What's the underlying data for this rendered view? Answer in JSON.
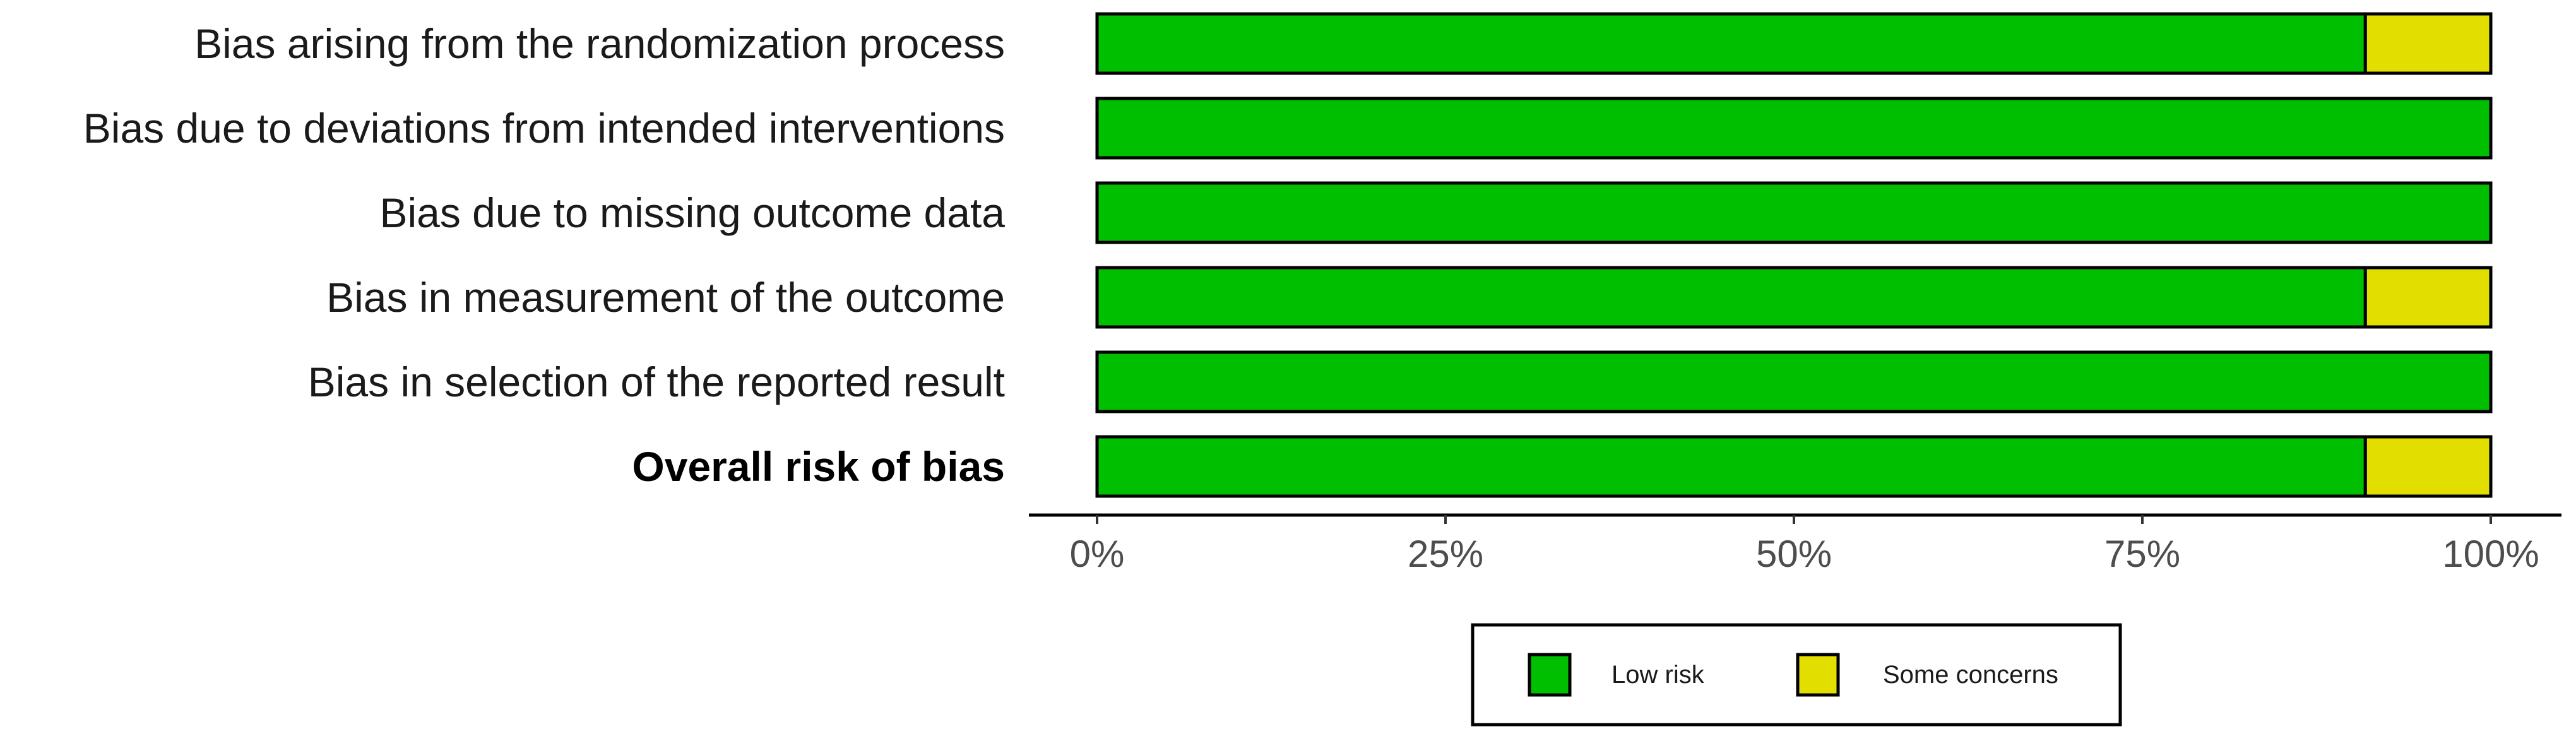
{
  "chart_data": {
    "type": "bar",
    "orientation": "horizontal",
    "stacked": true,
    "categories": [
      "Bias arising from the randomization process",
      "Bias due to deviations from intended interventions",
      "Bias due to missing outcome data",
      "Bias in measurement of the outcome",
      "Bias in selection of the reported result",
      "Overall risk of bias"
    ],
    "bold_category": "Overall risk of bias",
    "series": [
      {
        "name": "Low risk",
        "color": "#00bf00",
        "values": [
          91,
          100,
          100,
          91,
          100,
          91
        ]
      },
      {
        "name": "Some concerns",
        "color": "#e2df00",
        "values": [
          9,
          0,
          0,
          9,
          0,
          9
        ]
      }
    ],
    "xlim": [
      0,
      100
    ],
    "xticks": [
      0,
      25,
      50,
      75,
      100
    ],
    "xtick_labels": [
      "0%",
      "25%",
      "50%",
      "75%",
      "100%"
    ],
    "grid": false,
    "legend_position": "bottom"
  }
}
